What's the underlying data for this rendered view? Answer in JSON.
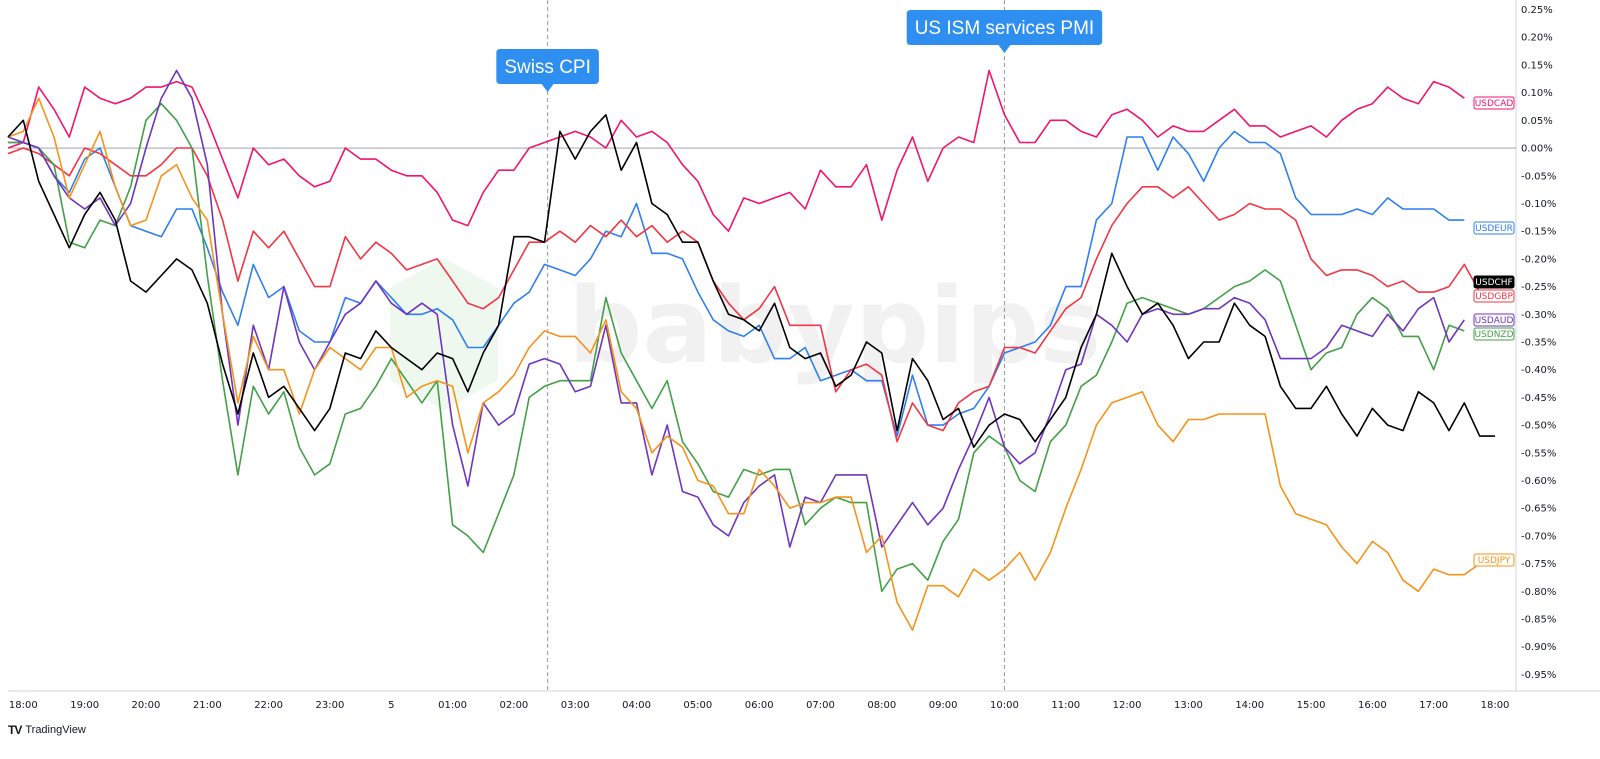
{
  "footer": {
    "brand": "TradingView",
    "logo_icon": "tradingview-logo-icon"
  },
  "watermark": "babypips",
  "chart_data": {
    "type": "line",
    "x_unit": "hour",
    "x_start": "17:45",
    "x_step_minutes": 15,
    "x_ticks": [
      "18:00",
      "19:00",
      "20:00",
      "21:00",
      "22:00",
      "23:00",
      "5",
      "01:00",
      "02:00",
      "03:00",
      "04:00",
      "05:00",
      "06:00",
      "07:00",
      "08:00",
      "09:00",
      "10:00",
      "11:00",
      "12:00",
      "13:00",
      "14:00",
      "15:00",
      "16:00",
      "17:00",
      "18:00"
    ],
    "y_unit": "%",
    "ylim": [
      -0.98,
      0.26
    ],
    "y_ticks": [
      0.25,
      0.2,
      0.15,
      0.1,
      0.05,
      0.0,
      -0.05,
      -0.1,
      -0.15,
      -0.2,
      -0.25,
      -0.3,
      -0.35,
      -0.4,
      -0.45,
      -0.5,
      -0.55,
      -0.6,
      -0.65,
      -0.7,
      -0.75,
      -0.8,
      -0.85,
      -0.9,
      -0.95
    ],
    "y_tick_labels": [
      "0.25%",
      "0.20%",
      "0.15%",
      "0.10%",
      "0.05%",
      "0.00%",
      "-0.05%",
      "-0.10%",
      "-0.15%",
      "-0.20%",
      "-0.25%",
      "-0.30%",
      "-0.35%",
      "-0.40%",
      "-0.45%",
      "-0.50%",
      "-0.55%",
      "-0.60%",
      "-0.65%",
      "-0.70%",
      "-0.75%",
      "-0.80%",
      "-0.85%",
      "-0.90%",
      "-0.95%"
    ],
    "zero_line": 0.0,
    "events": [
      {
        "label": "Swiss CPI",
        "x": 35.2,
        "y": 0.03,
        "color": "#2f8ff0"
      },
      {
        "label": "US ISM services PMI",
        "x": 65,
        "y": 0.14,
        "color": "#2f8ff0"
      }
    ],
    "series": [
      {
        "name": "USDCAD",
        "color": "#f2146e",
        "end_label": "USDCAD",
        "values": [
          0.0,
          0.01,
          0.11,
          0.07,
          0.02,
          0.11,
          0.09,
          0.08,
          0.09,
          0.11,
          0.11,
          0.12,
          0.11,
          0.05,
          -0.02,
          -0.09,
          0.0,
          -0.03,
          -0.02,
          -0.05,
          -0.07,
          -0.06,
          0.0,
          -0.02,
          -0.02,
          -0.04,
          -0.05,
          -0.05,
          -0.08,
          -0.13,
          -0.14,
          -0.08,
          -0.04,
          -0.04,
          0.0,
          0.01,
          0.02,
          0.03,
          0.02,
          0.0,
          0.05,
          0.02,
          0.03,
          0.01,
          -0.03,
          -0.06,
          -0.12,
          -0.15,
          -0.09,
          -0.1,
          -0.09,
          -0.08,
          -0.11,
          -0.04,
          -0.07,
          -0.07,
          -0.03,
          -0.13,
          -0.04,
          0.02,
          -0.06,
          0.0,
          0.02,
          0.01,
          0.14,
          0.06,
          0.01,
          0.01,
          0.05,
          0.05,
          0.03,
          0.02,
          0.06,
          0.07,
          0.05,
          0.02,
          0.04,
          0.03,
          0.03,
          0.05,
          0.07,
          0.04,
          0.04,
          0.02,
          0.03,
          0.04,
          0.02,
          0.05,
          0.07,
          0.08,
          0.11,
          0.09,
          0.08,
          0.12,
          0.11,
          0.09
        ]
      },
      {
        "name": "USDEUR",
        "color": "#2f7ff0",
        "end_label": "USDEUR",
        "values": [
          0.01,
          0.01,
          0.0,
          -0.05,
          -0.08,
          -0.02,
          0.0,
          -0.07,
          -0.14,
          -0.15,
          -0.16,
          -0.11,
          -0.11,
          -0.18,
          -0.26,
          -0.32,
          -0.21,
          -0.27,
          -0.25,
          -0.33,
          -0.35,
          -0.35,
          -0.27,
          -0.28,
          -0.24,
          -0.27,
          -0.3,
          -0.3,
          -0.29,
          -0.31,
          -0.36,
          -0.36,
          -0.32,
          -0.28,
          -0.26,
          -0.21,
          -0.22,
          -0.23,
          -0.2,
          -0.15,
          -0.16,
          -0.1,
          -0.19,
          -0.19,
          -0.2,
          -0.26,
          -0.31,
          -0.33,
          -0.34,
          -0.32,
          -0.38,
          -0.38,
          -0.36,
          -0.42,
          -0.41,
          -0.4,
          -0.42,
          -0.42,
          -0.52,
          -0.41,
          -0.5,
          -0.5,
          -0.48,
          -0.47,
          -0.43,
          -0.37,
          -0.36,
          -0.35,
          -0.32,
          -0.25,
          -0.25,
          -0.13,
          -0.1,
          0.02,
          0.02,
          -0.04,
          0.02,
          -0.01,
          -0.06,
          0.0,
          0.03,
          0.01,
          0.01,
          -0.01,
          -0.09,
          -0.12,
          -0.12,
          -0.12,
          -0.11,
          -0.12,
          -0.09,
          -0.11,
          -0.11,
          -0.11,
          -0.13,
          -0.13
        ]
      },
      {
        "name": "USDCHF",
        "color": "#000000",
        "end_label": "USDCHF",
        "values": [
          0.02,
          0.05,
          -0.06,
          -0.12,
          -0.18,
          -0.12,
          -0.08,
          -0.13,
          -0.24,
          -0.26,
          -0.23,
          -0.2,
          -0.22,
          -0.28,
          -0.39,
          -0.48,
          -0.37,
          -0.45,
          -0.43,
          -0.47,
          -0.51,
          -0.47,
          -0.37,
          -0.38,
          -0.33,
          -0.36,
          -0.38,
          -0.4,
          -0.37,
          -0.38,
          -0.44,
          -0.37,
          -0.32,
          -0.16,
          -0.16,
          -0.17,
          0.03,
          -0.02,
          0.03,
          0.06,
          -0.04,
          0.01,
          -0.1,
          -0.12,
          -0.17,
          -0.17,
          -0.24,
          -0.3,
          -0.31,
          -0.33,
          -0.28,
          -0.36,
          -0.38,
          -0.37,
          -0.43,
          -0.41,
          -0.35,
          -0.37,
          -0.51,
          -0.38,
          -0.42,
          -0.49,
          -0.47,
          -0.54,
          -0.5,
          -0.48,
          -0.49,
          -0.53,
          -0.49,
          -0.45,
          -0.36,
          -0.3,
          -0.19,
          -0.25,
          -0.3,
          -0.28,
          -0.32,
          -0.38,
          -0.35,
          -0.35,
          -0.28,
          -0.32,
          -0.34,
          -0.43,
          -0.47,
          -0.47,
          -0.43,
          -0.48,
          -0.52,
          -0.47,
          -0.5,
          -0.51,
          -0.44,
          -0.46,
          -0.51,
          -0.46,
          -0.52,
          -0.52
        ]
      },
      {
        "name": "USDGBP",
        "color": "#f23645",
        "end_label": "USDGBP",
        "values": [
          -0.01,
          0.0,
          -0.01,
          -0.03,
          -0.05,
          0.0,
          -0.01,
          -0.03,
          -0.05,
          -0.05,
          -0.03,
          0.0,
          0.0,
          -0.05,
          -0.13,
          -0.24,
          -0.15,
          -0.18,
          -0.15,
          -0.2,
          -0.25,
          -0.25,
          -0.16,
          -0.2,
          -0.17,
          -0.19,
          -0.22,
          -0.21,
          -0.2,
          -0.24,
          -0.28,
          -0.29,
          -0.27,
          -0.22,
          -0.17,
          -0.17,
          -0.15,
          -0.17,
          -0.14,
          -0.16,
          -0.13,
          -0.16,
          -0.14,
          -0.17,
          -0.15,
          -0.17,
          -0.24,
          -0.28,
          -0.31,
          -0.29,
          -0.25,
          -0.32,
          -0.32,
          -0.32,
          -0.44,
          -0.4,
          -0.39,
          -0.41,
          -0.53,
          -0.46,
          -0.5,
          -0.51,
          -0.46,
          -0.44,
          -0.43,
          -0.36,
          -0.36,
          -0.37,
          -0.33,
          -0.29,
          -0.27,
          -0.2,
          -0.14,
          -0.1,
          -0.07,
          -0.07,
          -0.09,
          -0.07,
          -0.1,
          -0.13,
          -0.12,
          -0.1,
          -0.11,
          -0.11,
          -0.13,
          -0.2,
          -0.23,
          -0.22,
          -0.22,
          -0.23,
          -0.25,
          -0.24,
          -0.26,
          -0.26,
          -0.25,
          -0.21,
          -0.26
        ]
      },
      {
        "name": "USDAUD",
        "color": "#6f35c0",
        "end_label": "USDAUD",
        "values": [
          0.02,
          0.01,
          0.0,
          -0.05,
          -0.09,
          -0.11,
          -0.09,
          -0.14,
          -0.1,
          0.0,
          0.09,
          0.14,
          0.09,
          -0.03,
          -0.3,
          -0.5,
          -0.32,
          -0.4,
          -0.25,
          -0.35,
          -0.4,
          -0.35,
          -0.3,
          -0.28,
          -0.24,
          -0.28,
          -0.3,
          -0.28,
          -0.3,
          -0.5,
          -0.61,
          -0.46,
          -0.5,
          -0.48,
          -0.39,
          -0.38,
          -0.39,
          -0.44,
          -0.43,
          -0.32,
          -0.46,
          -0.46,
          -0.59,
          -0.5,
          -0.62,
          -0.63,
          -0.68,
          -0.7,
          -0.64,
          -0.61,
          -0.59,
          -0.72,
          -0.63,
          -0.64,
          -0.59,
          -0.59,
          -0.59,
          -0.72,
          -0.68,
          -0.64,
          -0.68,
          -0.65,
          -0.58,
          -0.52,
          -0.45,
          -0.54,
          -0.57,
          -0.55,
          -0.48,
          -0.4,
          -0.39,
          -0.3,
          -0.32,
          -0.35,
          -0.3,
          -0.29,
          -0.3,
          -0.3,
          -0.29,
          -0.29,
          -0.27,
          -0.28,
          -0.31,
          -0.38,
          -0.38,
          -0.38,
          -0.36,
          -0.32,
          -0.33,
          -0.34,
          -0.3,
          -0.33,
          -0.29,
          -0.27,
          -0.35,
          -0.31
        ]
      },
      {
        "name": "USDNZD",
        "color": "#43a047",
        "end_label": "USDNZD",
        "values": [
          0.01,
          0.01,
          0.0,
          -0.03,
          -0.17,
          -0.18,
          -0.13,
          -0.14,
          -0.07,
          0.05,
          0.08,
          0.05,
          0.0,
          -0.23,
          -0.42,
          -0.59,
          -0.43,
          -0.48,
          -0.44,
          -0.54,
          -0.59,
          -0.57,
          -0.48,
          -0.47,
          -0.43,
          -0.38,
          -0.42,
          -0.46,
          -0.42,
          -0.68,
          -0.7,
          -0.73,
          -0.66,
          -0.59,
          -0.45,
          -0.43,
          -0.42,
          -0.42,
          -0.42,
          -0.27,
          -0.37,
          -0.42,
          -0.47,
          -0.42,
          -0.53,
          -0.57,
          -0.62,
          -0.63,
          -0.58,
          -0.59,
          -0.58,
          -0.58,
          -0.68,
          -0.65,
          -0.63,
          -0.64,
          -0.64,
          -0.8,
          -0.76,
          -0.75,
          -0.78,
          -0.71,
          -0.67,
          -0.55,
          -0.52,
          -0.54,
          -0.6,
          -0.62,
          -0.53,
          -0.5,
          -0.43,
          -0.41,
          -0.35,
          -0.28,
          -0.27,
          -0.28,
          -0.29,
          -0.3,
          -0.29,
          -0.27,
          -0.25,
          -0.24,
          -0.22,
          -0.24,
          -0.32,
          -0.4,
          -0.37,
          -0.36,
          -0.3,
          -0.27,
          -0.29,
          -0.34,
          -0.34,
          -0.4,
          -0.32,
          -0.33
        ]
      },
      {
        "name": "USDJPY",
        "color": "#f7931a",
        "end_label": "USDJPY",
        "values": [
          0.02,
          0.03,
          0.09,
          0.02,
          -0.09,
          -0.03,
          0.03,
          -0.07,
          -0.14,
          -0.13,
          -0.05,
          -0.03,
          -0.09,
          -0.13,
          -0.3,
          -0.46,
          -0.34,
          -0.4,
          -0.4,
          -0.48,
          -0.4,
          -0.36,
          -0.38,
          -0.4,
          -0.36,
          -0.36,
          -0.45,
          -0.43,
          -0.42,
          -0.43,
          -0.55,
          -0.46,
          -0.44,
          -0.41,
          -0.36,
          -0.33,
          -0.34,
          -0.34,
          -0.37,
          -0.31,
          -0.44,
          -0.47,
          -0.55,
          -0.52,
          -0.54,
          -0.6,
          -0.61,
          -0.66,
          -0.66,
          -0.58,
          -0.61,
          -0.65,
          -0.64,
          -0.64,
          -0.63,
          -0.63,
          -0.73,
          -0.7,
          -0.82,
          -0.87,
          -0.79,
          -0.79,
          -0.81,
          -0.76,
          -0.78,
          -0.76,
          -0.73,
          -0.78,
          -0.73,
          -0.65,
          -0.58,
          -0.5,
          -0.46,
          -0.45,
          -0.44,
          -0.5,
          -0.53,
          -0.49,
          -0.49,
          -0.48,
          -0.48,
          -0.48,
          -0.48,
          -0.61,
          -0.66,
          -0.67,
          -0.68,
          -0.72,
          -0.75,
          -0.71,
          -0.73,
          -0.78,
          -0.8,
          -0.76,
          -0.77,
          -0.77,
          -0.75
        ]
      }
    ]
  }
}
